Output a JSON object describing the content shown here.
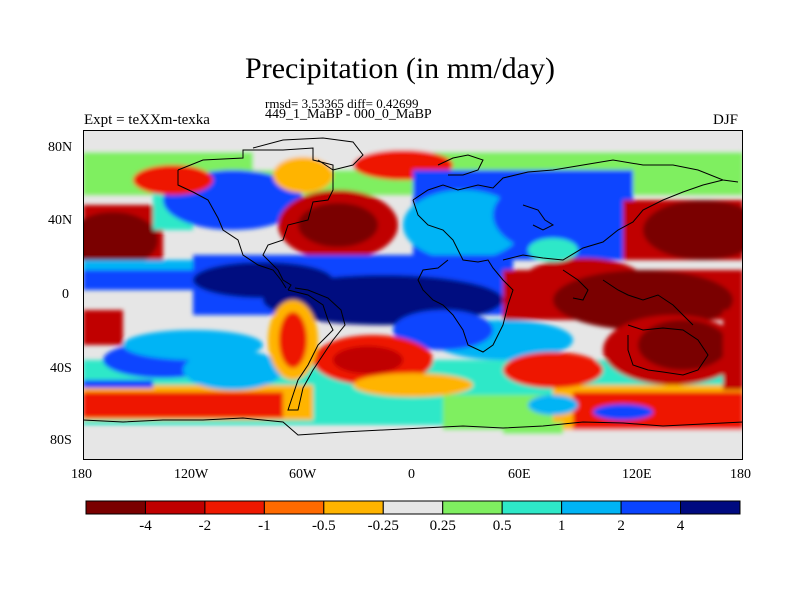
{
  "title": "Precipitation (in mm/day)",
  "stats": "rmsd= 3.53365 diff= 0.42699",
  "subtitle": "449_1_MaBP - 000_0_MaBP",
  "experiment": "Expt = teXXm-texka",
  "season": "DJF",
  "lat_labels": [
    "80N",
    "40N",
    "0",
    "40S",
    "80S"
  ],
  "lon_labels": [
    "180",
    "120W",
    "60W",
    "0",
    "60E",
    "120E",
    "180"
  ],
  "colorbar": {
    "labels": [
      "-4",
      "-2",
      "-1",
      "-0.5",
      "-0.25",
      "0.25",
      "0.5",
      "1",
      "2",
      "4"
    ],
    "colors": [
      "#7a0000",
      "#c00000",
      "#ee1800",
      "#ff6a00",
      "#ffb400",
      "#e6e6e6",
      "#7fef60",
      "#2ee8c8",
      "#00b4f5",
      "#0a44ff",
      "#000a80"
    ]
  }
}
